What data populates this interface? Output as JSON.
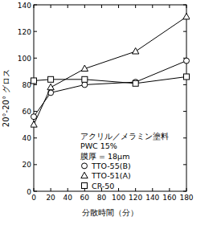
{
  "chart_data": {
    "type": "line",
    "x_label": "分散時間（分）",
    "y_label": "20°-20° グロス",
    "annotations": [
      "アクリル／メラミン塗料",
      "PWC 15%",
      "膜厚 = 18μm"
    ],
    "x": [
      0,
      20,
      60,
      120,
      180
    ],
    "series": [
      {
        "name": "TTO-55(B)",
        "color": "#000000",
        "marker": "circle",
        "values": [
          56,
          74,
          80,
          82,
          98
        ]
      },
      {
        "name": "TTO-51(A)",
        "color": "#000000",
        "marker": "triangle",
        "values": [
          50,
          78,
          92,
          105,
          131
        ]
      },
      {
        "name": "CR-50",
        "color": "#000000",
        "marker": "square",
        "values": [
          83,
          84,
          84,
          81,
          86
        ]
      }
    ],
    "xlim": [
      0,
      180
    ],
    "ylim": [
      0,
      140
    ],
    "xticks": [
      0,
      20,
      40,
      60,
      80,
      100,
      120,
      140,
      160,
      180
    ],
    "yticks": [
      0,
      20,
      40,
      60,
      80,
      100,
      120,
      140
    ],
    "grid": false,
    "legend": "lower right"
  }
}
